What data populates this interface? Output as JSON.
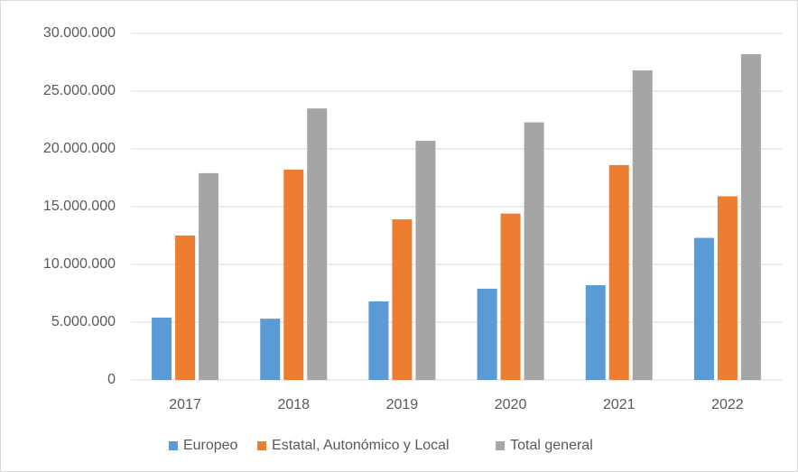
{
  "chart_data": {
    "type": "bar",
    "categories": [
      "2017",
      "2018",
      "2019",
      "2020",
      "2021",
      "2022"
    ],
    "series": [
      {
        "name": "Europeo",
        "color": "#5b9bd5",
        "values": [
          5400000,
          5300000,
          6800000,
          7900000,
          8200000,
          12300000
        ]
      },
      {
        "name": "Estatal, Autonómico y Local",
        "color": "#ed7d31",
        "values": [
          12500000,
          18200000,
          13900000,
          14400000,
          18600000,
          15900000
        ]
      },
      {
        "name": "Total general",
        "color": "#a5a5a5",
        "values": [
          17900000,
          23500000,
          20700000,
          22300000,
          26800000,
          28200000
        ]
      }
    ],
    "ylim": [
      0,
      30000000
    ],
    "yticks": [
      0,
      {
        "value": 5000000,
        "label": "5.000.000"
      },
      {
        "value": 10000000,
        "label": "10.000.000"
      },
      {
        "value": 15000000,
        "label": "15.000.000"
      },
      {
        "value": 20000000,
        "label": "20.000.000"
      },
      {
        "value": 25000000,
        "label": "25.000.000"
      },
      {
        "value": 30000000,
        "label": "30.000.000"
      }
    ],
    "grid": true,
    "legend": "bottom"
  }
}
